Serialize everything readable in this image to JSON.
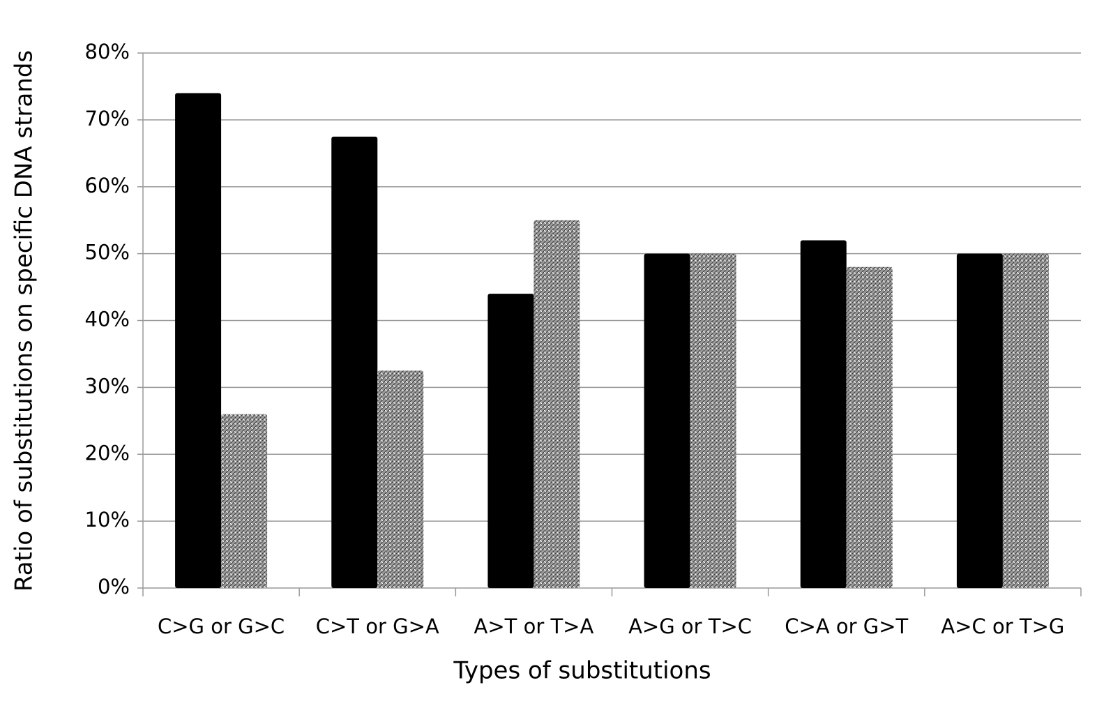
{
  "chart_data": {
    "type": "bar",
    "x_label": "Types of substitutions",
    "y_label": "Ratio of substitutions on specific DNA strands",
    "categories": [
      "C>G or G>C",
      "C>T or G>A",
      "A>T or T>A",
      "A>G or T>C",
      "C>A or G>T",
      "A>C or T>G"
    ],
    "series": [
      {
        "color": "#000000",
        "values": [
          74,
          67.5,
          44,
          50,
          52,
          50
        ]
      },
      {
        "color": "#9a9a9a",
        "values": [
          26,
          32.5,
          55,
          50,
          48,
          50
        ]
      }
    ],
    "ylim": [
      0,
      80
    ],
    "yticks": [
      {
        "value": 0,
        "label": "0%"
      },
      {
        "value": 10,
        "label": "10%"
      },
      {
        "value": 20,
        "label": "20%"
      },
      {
        "value": 30,
        "label": "30%"
      },
      {
        "value": 40,
        "label": "40%"
      },
      {
        "value": 50,
        "label": "50%"
      },
      {
        "value": 60,
        "label": "60%"
      },
      {
        "value": 70,
        "label": "70%"
      },
      {
        "value": 80,
        "label": "80%"
      }
    ],
    "grid": true
  }
}
